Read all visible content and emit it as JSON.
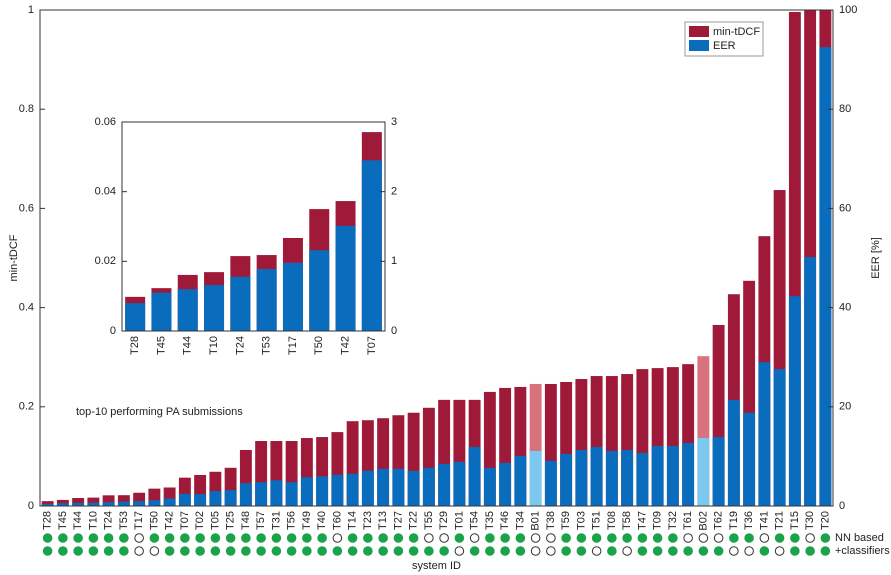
{
  "chart_data": [
    {
      "type": "bar",
      "ylabel": "min-tDCF",
      "y2label": "EER [%]",
      "xlabel": "system ID",
      "annotation": "top-10 performing PA submissions",
      "categories": [
        "T28",
        "T45",
        "T44",
        "T10",
        "T24",
        "T53",
        "T17",
        "T50",
        "T42",
        "T07",
        "T02",
        "T05",
        "T25",
        "T48",
        "T57",
        "T31",
        "T56",
        "T49",
        "T40",
        "T60",
        "T14",
        "T23",
        "T13",
        "T27",
        "T22",
        "T55",
        "T29",
        "T01",
        "T54",
        "T35",
        "T46",
        "T34",
        "B01",
        "T38",
        "T59",
        "T03",
        "T51",
        "T08",
        "T58",
        "T47",
        "T09",
        "T32",
        "T61",
        "B02",
        "T62",
        "T19",
        "T36",
        "T41",
        "T21",
        "T15",
        "T30",
        "T20"
      ],
      "series": [
        {
          "name": "min-tDCF",
          "color": "#9e1a38",
          "values": [
            0.0098,
            0.0123,
            0.0161,
            0.0169,
            0.0215,
            0.0218,
            0.0267,
            0.035,
            0.0373,
            0.0571,
            0.0625,
            0.069,
            0.077,
            0.113,
            0.131,
            0.131,
            0.131,
            0.137,
            0.139,
            0.149,
            0.171,
            0.173,
            0.177,
            0.183,
            0.188,
            0.198,
            0.214,
            0.214,
            0.214,
            0.23,
            0.238,
            0.24,
            0.246,
            0.246,
            0.25,
            0.256,
            0.262,
            0.262,
            0.266,
            0.276,
            0.278,
            0.28,
            0.286,
            0.302,
            0.365,
            0.427,
            0.454,
            0.544,
            0.637,
            0.996,
            1.0,
            1.0
          ],
          "bar_colors": [
            "#9e1a38",
            "#9e1a38",
            "#9e1a38",
            "#9e1a38",
            "#9e1a38",
            "#9e1a38",
            "#9e1a38",
            "#9e1a38",
            "#9e1a38",
            "#9e1a38",
            "#9e1a38",
            "#9e1a38",
            "#9e1a38",
            "#9e1a38",
            "#9e1a38",
            "#9e1a38",
            "#9e1a38",
            "#9e1a38",
            "#9e1a38",
            "#9e1a38",
            "#9e1a38",
            "#9e1a38",
            "#9e1a38",
            "#9e1a38",
            "#9e1a38",
            "#9e1a38",
            "#9e1a38",
            "#9e1a38",
            "#9e1a38",
            "#9e1a38",
            "#9e1a38",
            "#9e1a38",
            "#d9727f",
            "#9e1a38",
            "#9e1a38",
            "#9e1a38",
            "#9e1a38",
            "#9e1a38",
            "#9e1a38",
            "#9e1a38",
            "#9e1a38",
            "#9e1a38",
            "#9e1a38",
            "#d9727f",
            "#9e1a38",
            "#9e1a38",
            "#9e1a38",
            "#9e1a38",
            "#9e1a38",
            "#9e1a38",
            "#9e1a38",
            "#9e1a38"
          ]
        },
        {
          "name": "EER",
          "color": "#0a6cbc",
          "axis": "y2",
          "values": [
            0.4,
            0.55,
            0.6,
            0.66,
            0.78,
            0.89,
            0.98,
            1.16,
            1.51,
            2.45,
            2.4,
            3.0,
            3.2,
            4.6,
            4.8,
            5.2,
            4.8,
            5.8,
            6.0,
            6.3,
            6.5,
            7.1,
            7.5,
            7.5,
            7.1,
            7.7,
            8.5,
            8.9,
            11.9,
            7.7,
            8.7,
            10.1,
            11.1,
            9.1,
            10.5,
            11.3,
            11.9,
            11.1,
            11.3,
            10.7,
            12.1,
            12.1,
            12.7,
            13.7,
            13.9,
            21.4,
            18.8,
            29.0,
            27.6,
            42.3,
            50.2,
            92.5
          ],
          "bar_colors": [
            "#0a6cbc",
            "#0a6cbc",
            "#0a6cbc",
            "#0a6cbc",
            "#0a6cbc",
            "#0a6cbc",
            "#0a6cbc",
            "#0a6cbc",
            "#0a6cbc",
            "#0a6cbc",
            "#0a6cbc",
            "#0a6cbc",
            "#0a6cbc",
            "#0a6cbc",
            "#0a6cbc",
            "#0a6cbc",
            "#0a6cbc",
            "#0a6cbc",
            "#0a6cbc",
            "#0a6cbc",
            "#0a6cbc",
            "#0a6cbc",
            "#0a6cbc",
            "#0a6cbc",
            "#0a6cbc",
            "#0a6cbc",
            "#0a6cbc",
            "#0a6cbc",
            "#0a6cbc",
            "#0a6cbc",
            "#0a6cbc",
            "#0a6cbc",
            "#7cc8ee",
            "#0a6cbc",
            "#0a6cbc",
            "#0a6cbc",
            "#0a6cbc",
            "#0a6cbc",
            "#0a6cbc",
            "#0a6cbc",
            "#0a6cbc",
            "#0a6cbc",
            "#0a6cbc",
            "#7cc8ee",
            "#0a6cbc",
            "#0a6cbc",
            "#0a6cbc",
            "#0a6cbc",
            "#0a6cbc",
            "#0a6cbc",
            "#0a6cbc",
            "#0a6cbc"
          ]
        }
      ],
      "markers": [
        {
          "name": "NN based",
          "color": "#1aa34a",
          "values": [
            true,
            true,
            true,
            true,
            true,
            true,
            false,
            true,
            true,
            true,
            true,
            true,
            true,
            true,
            true,
            true,
            true,
            true,
            true,
            false,
            true,
            true,
            true,
            true,
            true,
            false,
            false,
            true,
            false,
            true,
            true,
            true,
            false,
            false,
            true,
            true,
            true,
            true,
            true,
            true,
            true,
            true,
            false,
            false,
            false,
            true,
            true,
            false,
            true,
            true,
            false,
            true
          ]
        },
        {
          "name": "+classifiers",
          "color": "#1aa34a",
          "values": [
            true,
            true,
            true,
            true,
            true,
            true,
            false,
            false,
            true,
            true,
            true,
            true,
            true,
            true,
            true,
            true,
            true,
            true,
            true,
            true,
            true,
            true,
            true,
            true,
            true,
            true,
            true,
            false,
            true,
            true,
            true,
            true,
            false,
            false,
            true,
            true,
            false,
            true,
            false,
            true,
            true,
            true,
            true,
            true,
            true,
            false,
            false,
            true,
            false,
            true,
            true,
            true
          ]
        }
      ],
      "ylim": [
        0,
        1
      ],
      "yticks": [
        0,
        0.2,
        0.4,
        0.6,
        0.8,
        1
      ],
      "y2lim": [
        0,
        100
      ],
      "y2ticks": [
        0,
        20,
        40,
        60,
        80,
        100
      ],
      "legend": "upper right"
    },
    {
      "type": "bar",
      "categories": [
        "T28",
        "T45",
        "T44",
        "T10",
        "T24",
        "T53",
        "T17",
        "T50",
        "T42",
        "T07"
      ],
      "series": [
        {
          "name": "min-tDCF",
          "color": "#9e1a38",
          "values": [
            0.0098,
            0.0123,
            0.0161,
            0.0169,
            0.0215,
            0.0218,
            0.0267,
            0.035,
            0.0373,
            0.0571
          ]
        },
        {
          "name": "EER",
          "color": "#0a6cbc",
          "axis": "y2",
          "values": [
            0.4,
            0.55,
            0.6,
            0.66,
            0.78,
            0.89,
            0.98,
            1.16,
            1.51,
            2.45
          ]
        }
      ],
      "ylim": [
        0,
        0.06
      ],
      "yticks": [
        0,
        0.02,
        0.04,
        0.06
      ],
      "y2lim": [
        0,
        3
      ],
      "y2ticks": [
        0,
        1,
        2,
        3
      ]
    }
  ]
}
